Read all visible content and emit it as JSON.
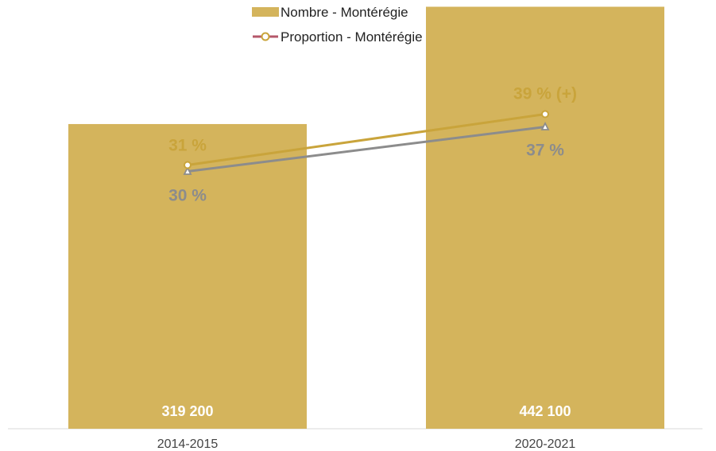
{
  "chart_data": {
    "type": "bar",
    "categories": [
      "2014-2015",
      "2020-2021"
    ],
    "series": [
      {
        "name": "Nombre - Montérégie",
        "kind": "bar",
        "values": [
          319200,
          442100
        ],
        "labels": [
          "319 200",
          "442 100"
        ],
        "color": "#D4B45C"
      },
      {
        "name": "Proportion - Montérégie",
        "kind": "line",
        "marker": "circle",
        "values": [
          31,
          39
        ],
        "labels": [
          "31 %",
          "39 % (+)"
        ],
        "color": "#C9A43B",
        "legend_color": "#B5576A"
      },
      {
        "kind": "line",
        "marker": "triangle",
        "values": [
          30,
          37
        ],
        "labels": [
          "30 %",
          "37 %"
        ],
        "color": "#8C8C8C"
      }
    ],
    "title": "",
    "xlabel": "",
    "ylabel": "",
    "legend": "top-center",
    "grid": false
  }
}
